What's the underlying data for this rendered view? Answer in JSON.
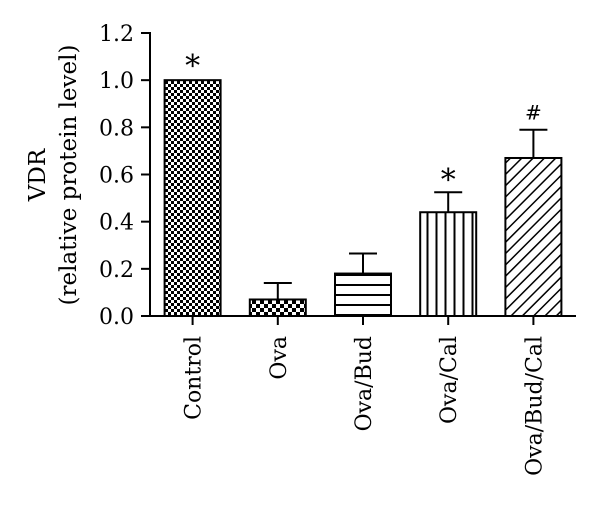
{
  "chart_data": {
    "type": "bar",
    "categories": [
      "Control",
      "Ova",
      "Ova/Bud",
      "Ova/Cal",
      "Ova/Bud/Cal"
    ],
    "values": [
      1.0,
      0.07,
      0.18,
      0.44,
      0.67
    ],
    "errors": [
      0.0,
      0.07,
      0.085,
      0.085,
      0.12
    ],
    "annotations": [
      "*",
      "",
      "",
      "*",
      "#"
    ],
    "patterns": [
      "checker",
      "checker-coarse",
      "horizontal",
      "vertical",
      "diagonal"
    ],
    "ylabel_line1": "VDR",
    "ylabel_line2": "(relative protein level)",
    "ylim": [
      0.0,
      1.2
    ],
    "yticks": [
      "0.0",
      "0.2",
      "0.4",
      "0.6",
      "0.8",
      "1.0",
      "1.2"
    ],
    "grid": false,
    "bar_color": "#000000"
  }
}
